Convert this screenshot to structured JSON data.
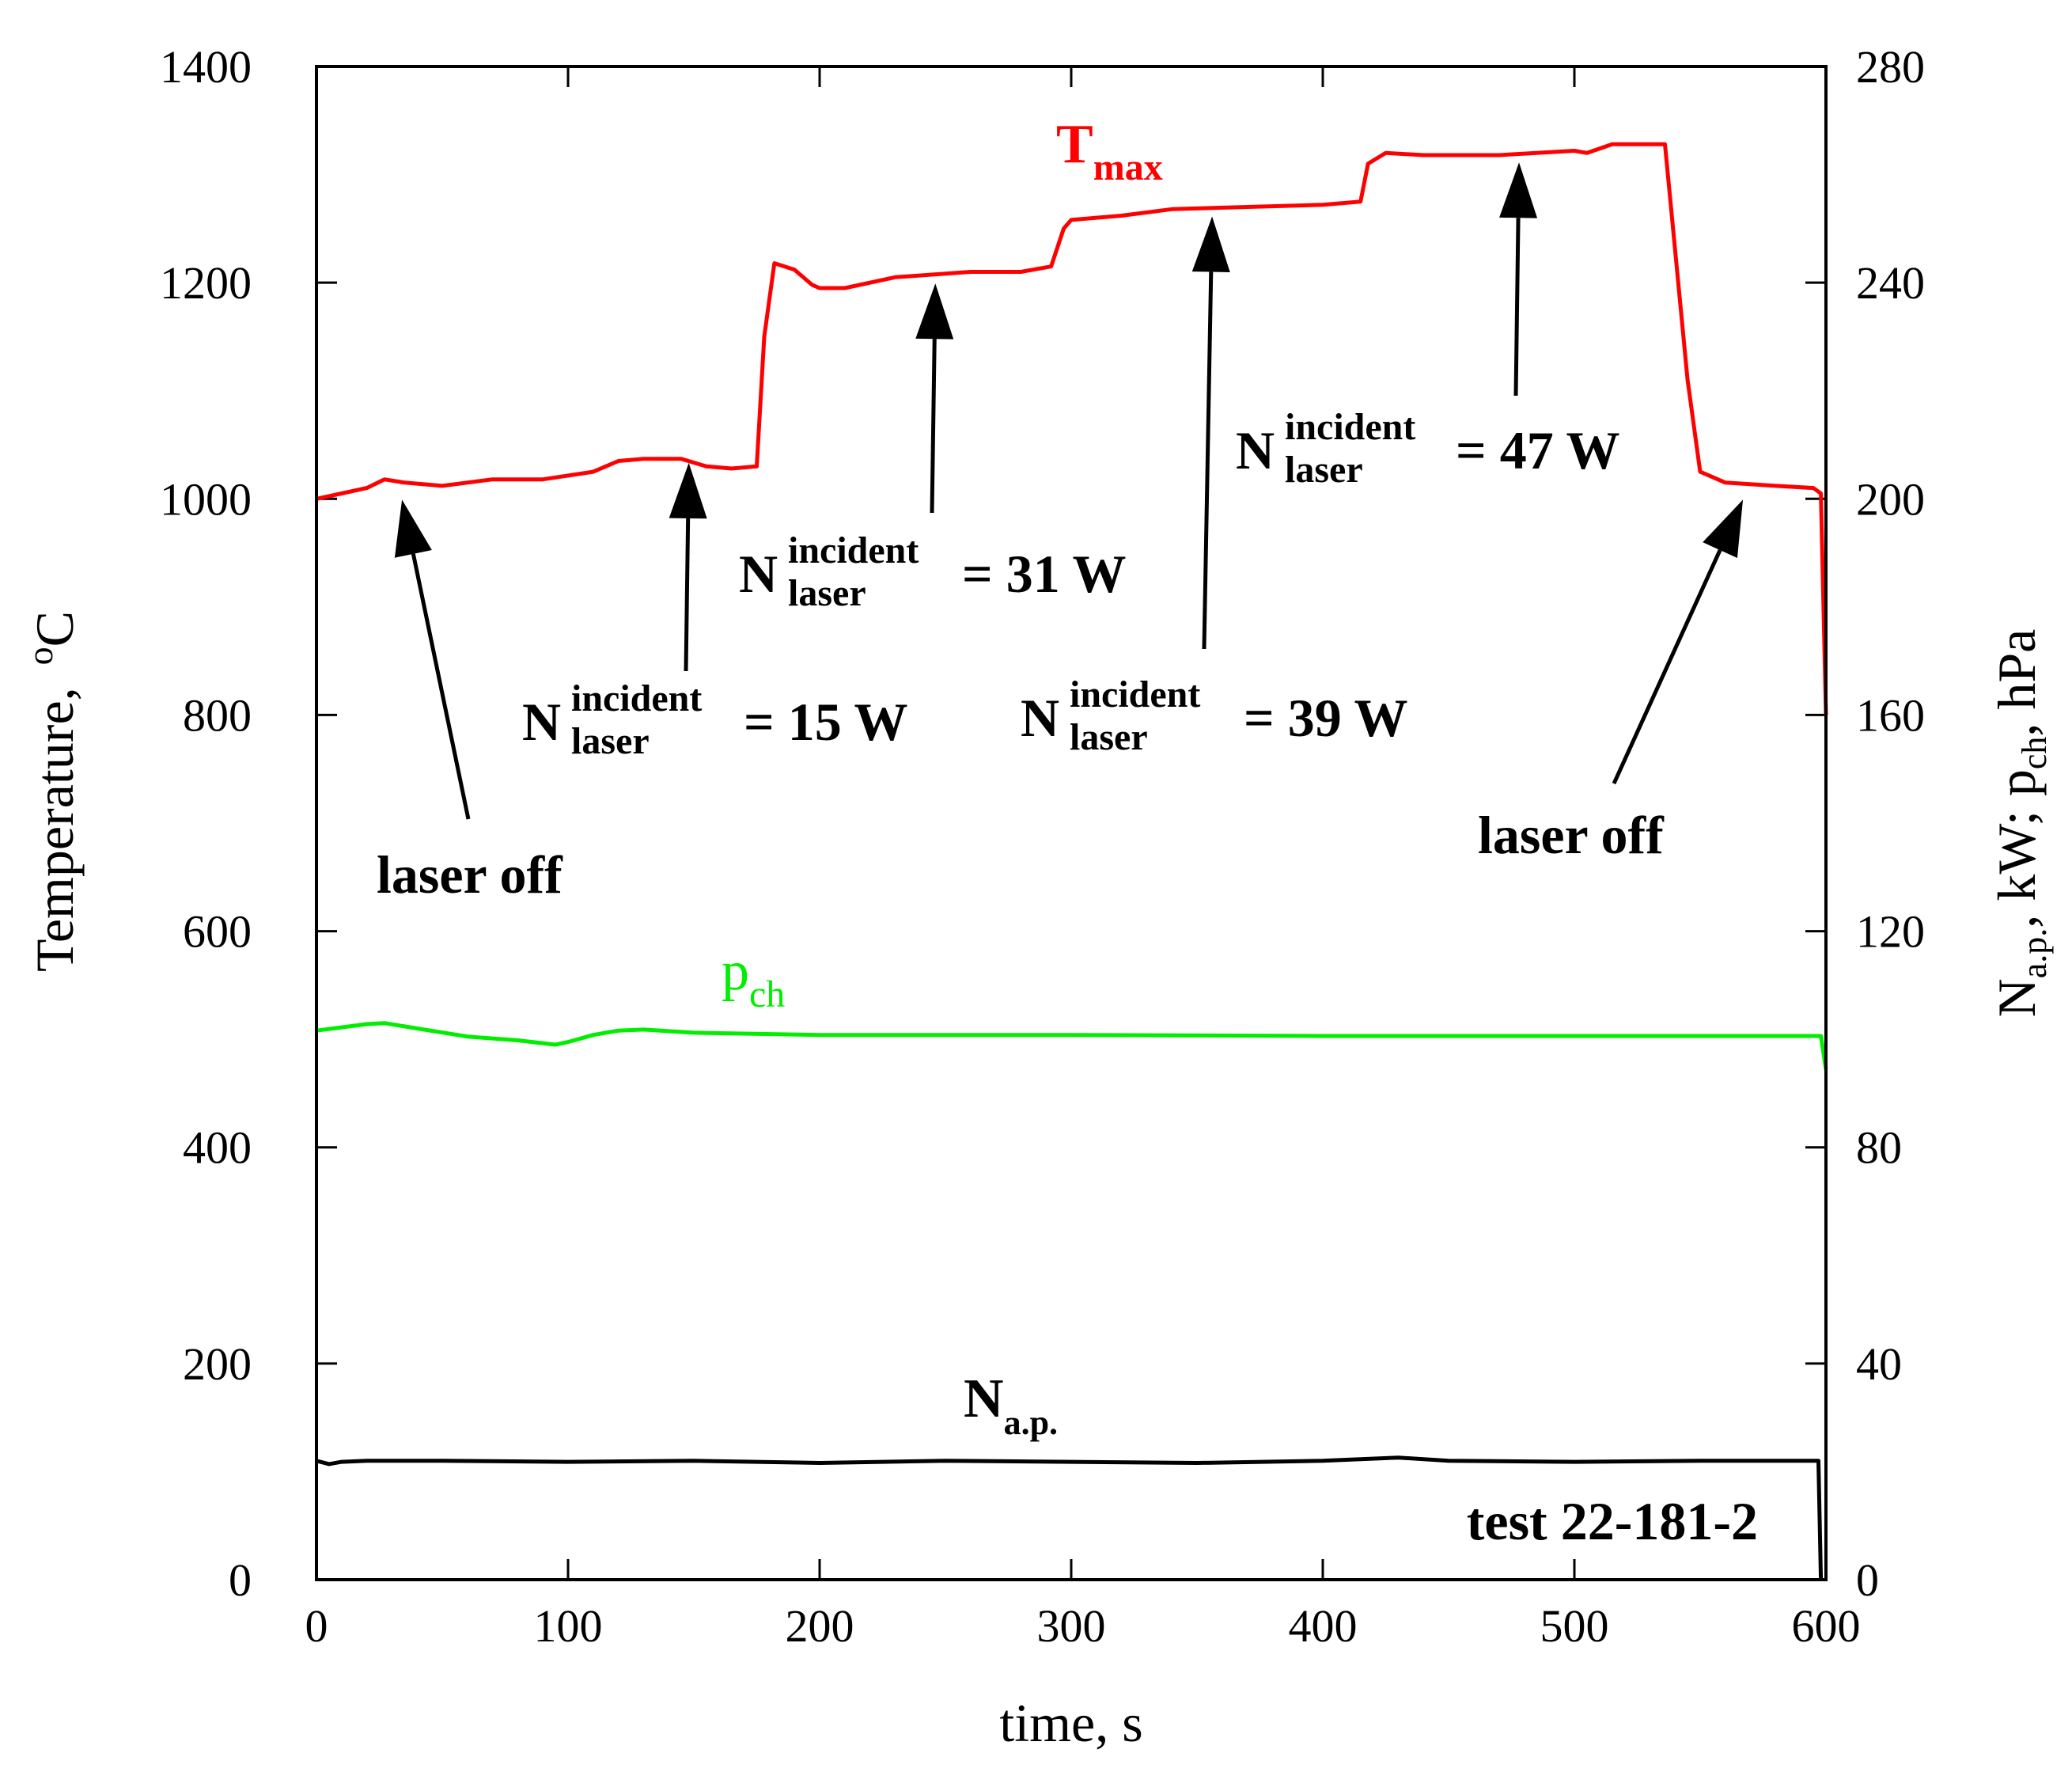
{
  "chart_data": {
    "type": "line",
    "xlabel": "time, s",
    "ylabel_left": "Temperature,",
    "ylabel_left_unit": {
      "sup": "o",
      "base": "C"
    },
    "ylabel_right": {
      "n": "N",
      "n_sub": "a.p.",
      "n_rest": ", kW;",
      "p": "p",
      "p_sub": "ch",
      "p_rest": ", hPa"
    },
    "xlim": [
      0,
      600
    ],
    "ylim_left": [
      0,
      1400
    ],
    "ylim_right": [
      0,
      280
    ],
    "x_ticks": [
      "0",
      "100",
      "200",
      "300",
      "400",
      "500",
      "600"
    ],
    "y_ticks_left": [
      "0",
      "200",
      "400",
      "600",
      "800",
      "1000",
      "1200",
      "1400"
    ],
    "y_ticks_right": [
      "0",
      "40",
      "80",
      "120",
      "160",
      "200",
      "240",
      "280"
    ],
    "series": [
      {
        "name": "Tmax",
        "label_base": "T",
        "label_sub": "max",
        "axis": "left",
        "color": "#ff0000",
        "x": [
          0,
          10,
          20,
          27,
          35,
          50,
          70,
          90,
          110,
          120,
          130,
          145,
          155,
          165,
          175,
          178,
          182,
          190,
          197,
          200,
          210,
          230,
          260,
          280,
          292,
          297,
          300,
          320,
          340,
          370,
          400,
          415,
          418,
          425,
          440,
          470,
          500,
          505,
          515,
          536,
          545,
          550,
          560,
          580,
          595,
          598,
          600
        ],
        "y": [
          1000,
          1005,
          1010,
          1018,
          1015,
          1012,
          1018,
          1018,
          1025,
          1035,
          1037,
          1037,
          1030,
          1028,
          1030,
          1150,
          1218,
          1212,
          1198,
          1195,
          1195,
          1205,
          1210,
          1210,
          1215,
          1250,
          1258,
          1262,
          1268,
          1270,
          1272,
          1275,
          1310,
          1320,
          1318,
          1318,
          1322,
          1320,
          1328,
          1328,
          1110,
          1025,
          1015,
          1012,
          1010,
          1005,
          800
        ]
      },
      {
        "name": "pch",
        "label_base": "p",
        "label_sub": "ch",
        "axis": "right",
        "color": "#00ee00",
        "x": [
          0,
          10,
          20,
          27,
          40,
          60,
          80,
          95,
          100,
          110,
          120,
          130,
          150,
          200,
          300,
          400,
          500,
          598,
          600
        ],
        "y": [
          101.6,
          102.2,
          102.8,
          103,
          102,
          100.5,
          99.8,
          99,
          99.5,
          100.8,
          101.6,
          101.8,
          101.2,
          100.8,
          100.8,
          100.6,
          100.6,
          100.6,
          94.4
        ]
      },
      {
        "name": "Na.p.",
        "label_base": "N",
        "label_sub": "a.p.",
        "axis": "right",
        "color": "#000000",
        "x": [
          0,
          5,
          10,
          20,
          50,
          100,
          150,
          200,
          250,
          300,
          350,
          400,
          430,
          450,
          500,
          550,
          597,
          598
        ],
        "y": [
          22,
          21.4,
          21.8,
          22,
          22,
          21.8,
          22,
          21.6,
          22,
          21.8,
          21.6,
          22,
          22.6,
          22,
          21.8,
          22,
          22,
          0
        ]
      }
    ],
    "annotations": [
      {
        "kind": "arrow",
        "tip_x": 34,
        "tip_y": 1008,
        "label": "laser off"
      },
      {
        "kind": "arrow",
        "tip_x": 148,
        "tip_y": 1042,
        "power": "= 15 W"
      },
      {
        "kind": "arrow",
        "tip_x": 246,
        "tip_y": 1208,
        "power": "= 31 W"
      },
      {
        "kind": "arrow",
        "tip_x": 356,
        "tip_y": 1270,
        "power": "= 39 W"
      },
      {
        "kind": "arrow",
        "tip_x": 478,
        "tip_y": 1320,
        "power": "= 47 W"
      },
      {
        "kind": "arrow",
        "tip_x": 567,
        "tip_y": 1008,
        "label": "laser off"
      }
    ],
    "n_laser": {
      "base": "N",
      "sup": "incident",
      "sub": "laser"
    },
    "test_label": "test 22-181-2"
  }
}
